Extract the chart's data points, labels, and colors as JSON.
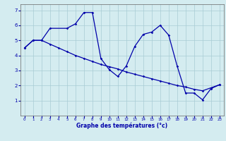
{
  "xlabel": "Graphe des températures (°c)",
  "bg_color": "#d4ecf0",
  "grid_color": "#a8ccd4",
  "line_color": "#0000aa",
  "xlim": [
    -0.5,
    23.5
  ],
  "ylim": [
    0,
    7.4
  ],
  "xticks": [
    0,
    1,
    2,
    3,
    4,
    5,
    6,
    7,
    8,
    9,
    10,
    11,
    12,
    13,
    14,
    15,
    16,
    17,
    18,
    19,
    20,
    21,
    22,
    23
  ],
  "yticks": [
    1,
    2,
    3,
    4,
    5,
    6,
    7
  ],
  "series1_x": [
    0,
    1,
    2,
    3,
    5,
    6,
    7,
    8,
    9,
    10,
    11,
    12,
    13,
    14,
    15,
    16,
    17,
    18,
    19,
    20,
    21,
    22,
    23
  ],
  "series1_y": [
    4.5,
    5.0,
    5.0,
    5.8,
    5.8,
    6.1,
    6.85,
    6.85,
    3.8,
    3.05,
    2.6,
    3.3,
    4.6,
    5.4,
    5.55,
    6.0,
    5.35,
    3.3,
    1.5,
    1.5,
    1.05,
    1.8,
    2.05
  ],
  "series2_x": [
    0,
    1,
    2,
    3,
    4,
    5,
    6,
    7,
    8,
    9,
    10,
    11,
    12,
    13,
    14,
    15,
    16,
    17,
    18,
    19,
    20,
    21,
    22,
    23
  ],
  "series2_y": [
    4.5,
    5.0,
    5.0,
    4.75,
    4.5,
    4.25,
    4.0,
    3.8,
    3.6,
    3.4,
    3.25,
    3.1,
    2.9,
    2.75,
    2.6,
    2.45,
    2.3,
    2.15,
    2.0,
    1.9,
    1.75,
    1.65,
    1.85,
    2.05
  ]
}
